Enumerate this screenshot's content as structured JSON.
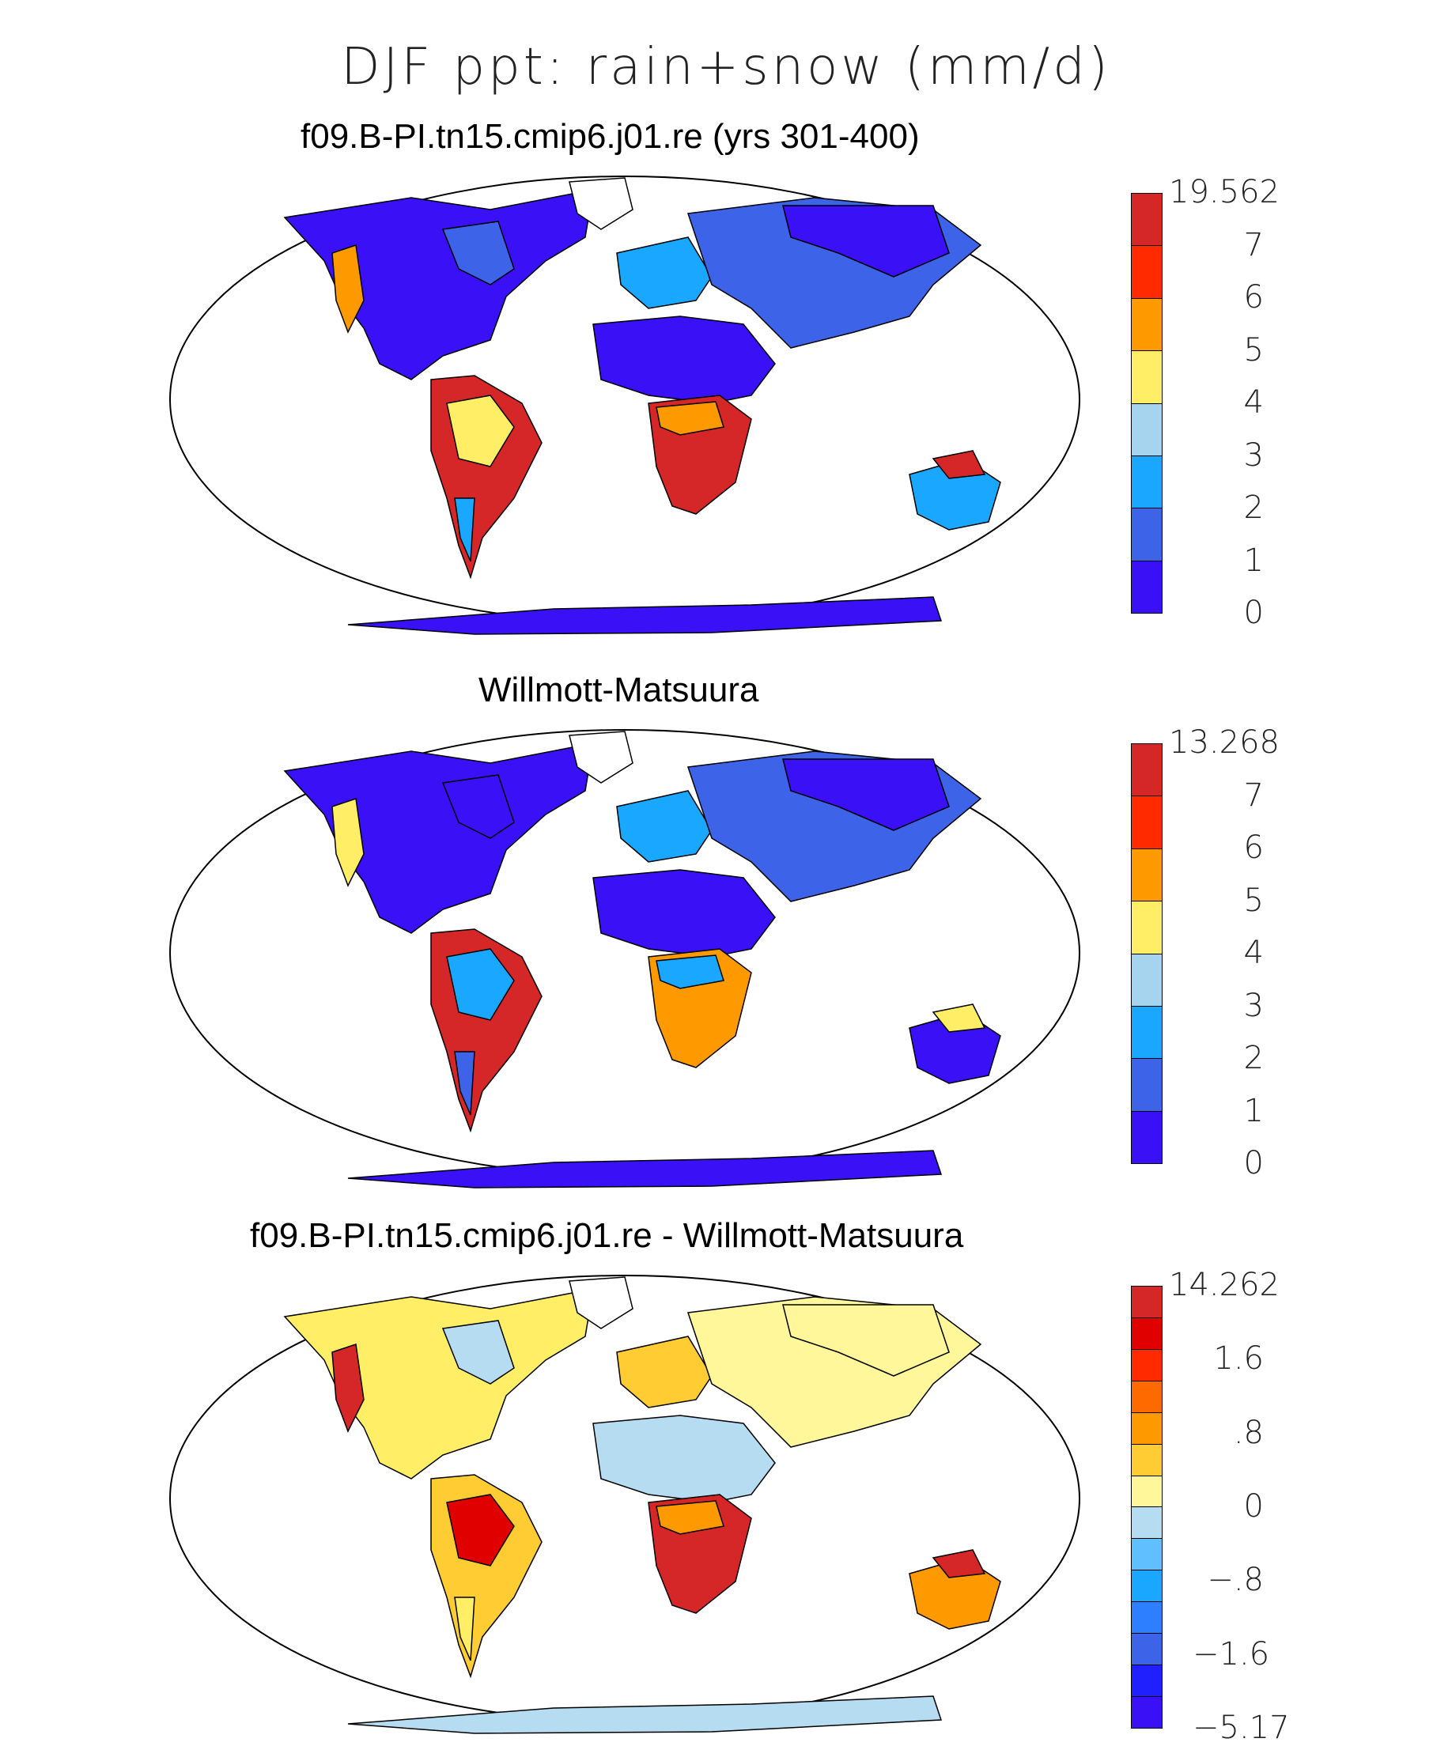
{
  "figure": {
    "title": "DJF ppt: rain+snow (mm/d)"
  },
  "panels": [
    {
      "title": "f09.B-PI.tn15.cmip6.j01.re (yrs 301-400)",
      "colorbar": {
        "labels": [
          "19.562",
          "7",
          "6",
          "5",
          "4",
          "3",
          "2",
          "1",
          "0"
        ],
        "colors": [
          "#d62728",
          "#ff2a00",
          "#ff9900",
          "#ffee66",
          "#a6d4ee",
          "#1aa7ff",
          "#3d64e8",
          "#3a10f7"
        ]
      },
      "fills": {
        "north_america": "#3a10f7",
        "canada_east": "#3d64e8",
        "west_coast": "#ff9900",
        "south_america": "#d62728",
        "sa_rim": "#ffee66",
        "sa_south": "#1aa7ff",
        "africa_north": "#3a10f7",
        "africa_south": "#d62728",
        "africa_rim": "#ff9900",
        "eurasia": "#3d64e8",
        "siberia": "#3a10f7",
        "europe": "#1aa7ff",
        "australia": "#1aa7ff",
        "aus_north": "#d62728",
        "antarctica": "#3a10f7",
        "greenland": "#ffffff"
      }
    },
    {
      "title": "Willmott-Matsuura",
      "colorbar": {
        "labels": [
          "13.268",
          "7",
          "6",
          "5",
          "4",
          "3",
          "2",
          "1",
          "0"
        ],
        "colors": [
          "#d62728",
          "#ff2a00",
          "#ff9900",
          "#ffee66",
          "#a6d4ee",
          "#1aa7ff",
          "#3d64e8",
          "#3a10f7"
        ]
      },
      "fills": {
        "north_america": "#3a10f7",
        "canada_east": "#3a10f7",
        "west_coast": "#ffee66",
        "south_america": "#d62728",
        "sa_rim": "#1aa7ff",
        "sa_south": "#3d64e8",
        "africa_north": "#3a10f7",
        "africa_south": "#ff9900",
        "africa_rim": "#1aa7ff",
        "eurasia": "#3d64e8",
        "siberia": "#3a10f7",
        "europe": "#1aa7ff",
        "australia": "#3a10f7",
        "aus_north": "#ffee66",
        "antarctica": "#3a10f7",
        "greenland": "#ffffff"
      }
    },
    {
      "title": "f09.B-PI.tn15.cmip6.j01.re - Willmott-Matsuura",
      "colorbar": {
        "labels": [
          "14.262",
          "1.6",
          ".8",
          "0",
          "−.8",
          "−1.6",
          "−5.17"
        ],
        "colors": [
          "#d62728",
          "#e00000",
          "#ff2a00",
          "#ff6a00",
          "#ff9900",
          "#ffcc33",
          "#fff799",
          "#b5dcf0",
          "#5fbfff",
          "#1aa7ff",
          "#2d7fff",
          "#3d64e8",
          "#2020ff",
          "#3a10f7"
        ]
      },
      "fills": {
        "north_america": "#ffee66",
        "canada_east": "#b5dcf0",
        "west_coast": "#d62728",
        "south_america": "#ffcc33",
        "sa_rim": "#e00000",
        "sa_south": "#ffee66",
        "africa_north": "#b5dcf0",
        "africa_south": "#d62728",
        "africa_rim": "#ff9900",
        "eurasia": "#fff799",
        "siberia": "#fff799",
        "europe": "#ffcc33",
        "australia": "#ff9900",
        "aus_north": "#d62728",
        "antarctica": "#b5dcf0",
        "greenland": "#ffffff"
      }
    }
  ]
}
